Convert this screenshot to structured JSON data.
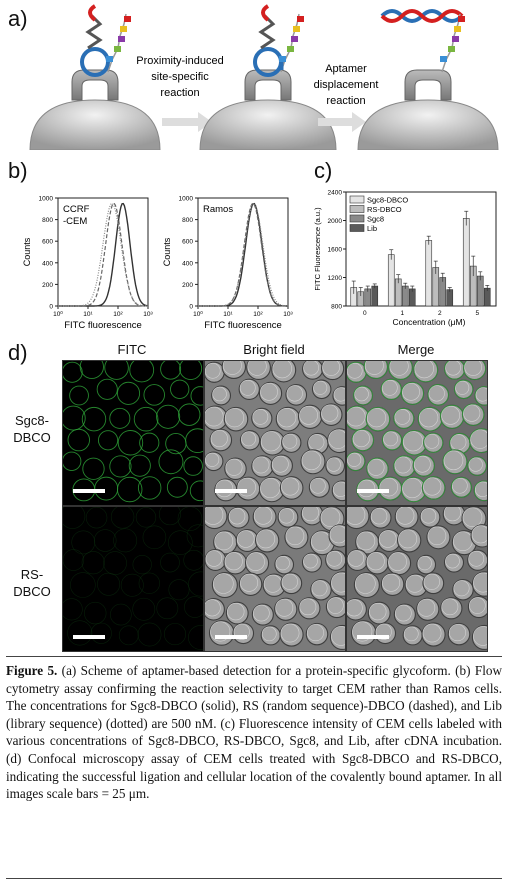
{
  "panel_a": {
    "letter": "a)",
    "step1_label_line1": "Proximity-induced",
    "step1_label_line2": "site-specific",
    "step1_label_line3": "reaction",
    "step2_label_line1": "Aptamer",
    "step2_label_line2": "displacement",
    "step2_label_line3": "reaction"
  },
  "panel_b": {
    "letter": "b)",
    "plots": [
      {
        "label_line1": "CCRF",
        "label_line2": "-CEM",
        "xlabel": "FITC fluorescence",
        "ylabel": "Counts",
        "yticks": [
          "0",
          "200",
          "400",
          "600",
          "800",
          "1000"
        ],
        "xticks": [
          "10⁰",
          "10¹",
          "10²",
          "10³"
        ]
      },
      {
        "label_line1": "Ramos",
        "label_line2": "",
        "xlabel": "FITC fluorescence",
        "ylabel": "Counts",
        "yticks": [
          "0",
          "200",
          "400",
          "600",
          "800",
          "1000"
        ],
        "xticks": [
          "10⁰",
          "10¹",
          "10²",
          "10³"
        ]
      }
    ]
  },
  "panel_c": {
    "letter": "c)",
    "chart_data": {
      "type": "bar",
      "categories": [
        "0",
        "1",
        "2",
        "5"
      ],
      "series": [
        {
          "name": "Sgc8-DBCO",
          "values": [
            1060,
            1520,
            1720,
            2030
          ],
          "err": [
            90,
            70,
            60,
            100
          ]
        },
        {
          "name": "RS-DBCO",
          "values": [
            1000,
            1180,
            1340,
            1360
          ],
          "err": [
            60,
            60,
            90,
            140
          ]
        },
        {
          "name": "Sgc8",
          "values": [
            1040,
            1080,
            1200,
            1220
          ],
          "err": [
            40,
            40,
            60,
            60
          ]
        },
        {
          "name": "Lib",
          "values": [
            1080,
            1040,
            1030,
            1050
          ],
          "err": [
            30,
            40,
            30,
            40
          ]
        }
      ],
      "colors": [
        "#e4e4e4",
        "#bdbdbd",
        "#8a8a8a",
        "#5a5a5a"
      ],
      "xlabel": "Concentration (μM)",
      "ylabel": "FITC Fluorescence (a.u.)",
      "ylim": [
        800,
        2400
      ],
      "yticks": [
        "800",
        "1200",
        "1600",
        "2000",
        "2400"
      ],
      "legend": "top-left"
    }
  },
  "panel_d": {
    "letter": "d)",
    "columns": [
      "FITC",
      "Bright field",
      "Merge"
    ],
    "rows": [
      {
        "line1": "Sgc8-",
        "line2": "DBCO"
      },
      {
        "line1": "RS-",
        "line2": "DBCO"
      }
    ]
  },
  "caption": {
    "figure_label": "Figure 5.",
    "text": " (a) Scheme of aptamer-based detection for a protein-specific glycoform. (b) Flow cytometry assay confirming the reaction selectivity to target CEM rather than Ramos cells. The concentrations for Sgc8-DBCO (solid), RS (random sequence)-DBCO (dashed), and Lib (library sequence) (dotted) are 500 nM. (c) Fluorescence intensity of CEM cells labeled with various concentrations of Sgc8-DBCO, RS-DBCO, Sgc8, and Lib, after cDNA incubation. (d) Confocal microscopy assay of CEM cells treated with Sgc8-DBCO and RS-DBCO, indicating the successful ligation and cellular location of the covalently bound aptamer. In all images scale bars = 25 μm."
  }
}
